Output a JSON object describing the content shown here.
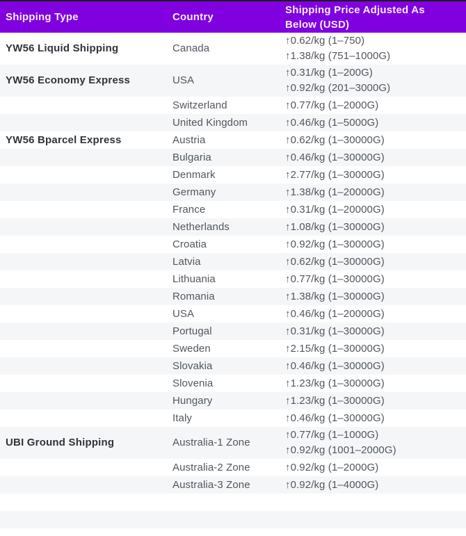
{
  "colors": {
    "header_bg": "#8000df",
    "header_text": "#f7eefc",
    "row_alt_bg": "#f5f6f8",
    "row_bg": "#ffffff",
    "shipping_type_text": "#2f343a",
    "cell_text": "#51565e",
    "top_bar": "#1d1d1d"
  },
  "table": {
    "header": {
      "shipping_type": "Shipping Type",
      "country": "Country",
      "price": "Shipping Price Adjusted As Below (USD)"
    },
    "rows": [
      {
        "type": "YW56 Liquid Shipping",
        "country": "Canada",
        "prices": [
          "↑0.62/kg (1–750)",
          "↑1.38/kg (751–1000G)"
        ]
      },
      {
        "type": "YW56 Economy Express",
        "country": "USA",
        "prices": [
          "↑0.31/kg (1–200G)",
          "↑0.92/kg (201–3000G)"
        ]
      },
      {
        "type": "",
        "country": "Switzerland",
        "prices": [
          "↑0.77/kg (1–2000G)"
        ]
      },
      {
        "type": "",
        "country": "United Kingdom",
        "prices": [
          "↑0.46/kg (1–5000G)"
        ]
      },
      {
        "type": "YW56 Bparcel Express",
        "country": "Austria",
        "prices": [
          "↑0.62/kg (1–30000G)"
        ]
      },
      {
        "type": "",
        "country": "Bulgaria",
        "prices": [
          "↑0.46/kg (1–30000G)"
        ]
      },
      {
        "type": "",
        "country": "Denmark",
        "prices": [
          "↑2.77/kg (1–30000G)"
        ]
      },
      {
        "type": "",
        "country": "Germany",
        "prices": [
          "↑1.38/kg (1–20000G)"
        ]
      },
      {
        "type": "",
        "country": "France",
        "prices": [
          "↑0.31/kg (1–20000G)"
        ]
      },
      {
        "type": "",
        "country": "Netherlands",
        "prices": [
          "↑1.08/kg (1–30000G)"
        ]
      },
      {
        "type": "",
        "country": "Croatia",
        "prices": [
          "↑0.92/kg (1–30000G)"
        ]
      },
      {
        "type": "",
        "country": "Latvia",
        "prices": [
          "↑0.62/kg (1–30000G)"
        ]
      },
      {
        "type": "",
        "country": "Lithuania",
        "prices": [
          "↑0.77/kg (1–30000G)"
        ]
      },
      {
        "type": "",
        "country": "Romania",
        "prices": [
          "↑1.38/kg (1–30000G)"
        ]
      },
      {
        "type": "",
        "country": "USA",
        "prices": [
          "↑0.46/kg (1–20000G)"
        ]
      },
      {
        "type": "",
        "country": "Portugal",
        "prices": [
          "↑0.31/kg (1–30000G)"
        ]
      },
      {
        "type": "",
        "country": "Sweden",
        "prices": [
          "↑2.15/kg (1–30000G)"
        ]
      },
      {
        "type": "",
        "country": "Slovakia",
        "prices": [
          "↑0.46/kg (1–30000G)"
        ]
      },
      {
        "type": "",
        "country": "Slovenia",
        "prices": [
          "↑1.23/kg (1–30000G)"
        ]
      },
      {
        "type": "",
        "country": "Hungary",
        "prices": [
          "↑1.23/kg (1–30000G)"
        ]
      },
      {
        "type": "",
        "country": "Italy",
        "prices": [
          "↑0.46/kg (1–30000G)"
        ]
      },
      {
        "type": "UBI Ground Shipping",
        "country": "Australia-1 Zone",
        "prices": [
          "↑0.77/kg (1–1000G)",
          "↑0.92/kg (1001–2000G)"
        ]
      },
      {
        "type": "",
        "country": "Australia-2 Zone",
        "prices": [
          "↑0.92/kg (1–2000G)"
        ]
      },
      {
        "type": "",
        "country": "Australia-3 Zone",
        "prices": [
          "↑0.92/kg (1–4000G)"
        ]
      },
      {
        "type": "",
        "country": "",
        "prices": []
      },
      {
        "type": "",
        "country": "",
        "prices": []
      }
    ]
  }
}
